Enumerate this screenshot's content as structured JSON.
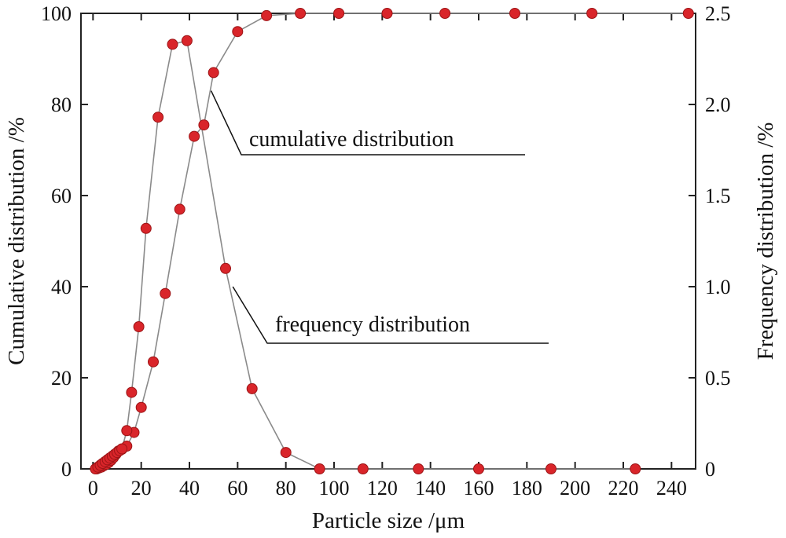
{
  "chart_data": {
    "type": "scatter",
    "title": "",
    "xlabel": "Particle size /μm",
    "ylabel_left": "Cumulative distribution /%",
    "ylabel_right": "Frequency distribution /%",
    "xlim": [
      -5,
      250
    ],
    "ylim_left": [
      0,
      100
    ],
    "ylim_right": [
      0,
      2.5
    ],
    "x_ticks": [
      "0",
      "20",
      "40",
      "60",
      "80",
      "100",
      "120",
      "140",
      "160",
      "180",
      "200",
      "220",
      "240"
    ],
    "y_left_ticks": [
      "0",
      "20",
      "40",
      "60",
      "80",
      "100"
    ],
    "y_right_ticks": [
      "0",
      "0.5",
      "1.0",
      "1.5",
      "2.0",
      "2.5"
    ],
    "grid": false,
    "colors": {
      "marker": "#d9252a",
      "marker_edge": "#9c1416",
      "line": "#8a8a8a",
      "axis": "#222222"
    },
    "series": [
      {
        "name": "cumulative distribution",
        "axis": "left",
        "x": [
          1.5,
          2.5,
          3.5,
          4.5,
          5.5,
          6.5,
          7.5,
          8.5,
          9.5,
          10.5,
          12,
          14,
          17,
          20,
          25,
          30,
          36,
          42,
          46,
          50,
          60,
          72,
          86,
          102,
          122,
          146,
          175,
          207,
          247
        ],
        "y": [
          0,
          0.2,
          0.4,
          0.7,
          1,
          1.4,
          1.9,
          2.5,
          3.2,
          3.9,
          4.3,
          5,
          8,
          13.5,
          23.5,
          38.5,
          57,
          73,
          75.5,
          87,
          96,
          99.5,
          100,
          100,
          100,
          100,
          100,
          100,
          100
        ]
      },
      {
        "name": "frequency distribution",
        "axis": "right",
        "x": [
          1,
          2,
          3,
          4,
          5,
          6,
          7,
          8,
          9,
          10,
          11,
          12,
          14,
          16,
          19,
          22,
          27,
          33,
          39,
          55,
          66,
          80,
          94,
          112,
          135,
          160,
          190,
          225
        ],
        "y": [
          0,
          0.01,
          0.02,
          0.03,
          0.04,
          0.05,
          0.06,
          0.07,
          0.08,
          0.09,
          0.1,
          0.11,
          0.21,
          0.42,
          0.78,
          1.32,
          1.93,
          2.33,
          2.35,
          1.1,
          0.44,
          0.09,
          0,
          0,
          0,
          0,
          0,
          0
        ]
      }
    ],
    "annotations": [
      {
        "text": "cumulative distribution",
        "series": "cumulative distribution"
      },
      {
        "text": "frequency distribution",
        "series": "frequency distribution"
      }
    ]
  }
}
